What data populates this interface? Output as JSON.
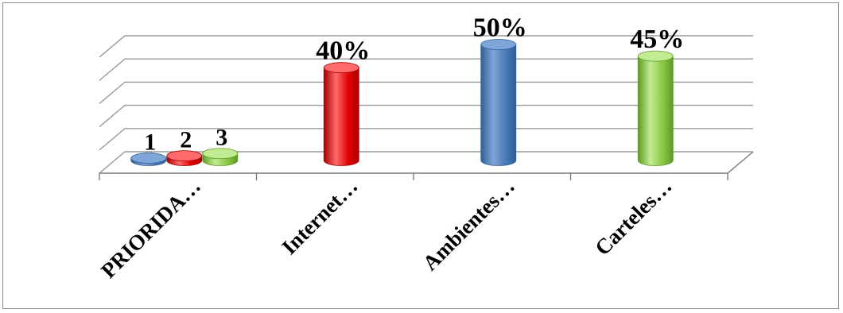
{
  "chart_data": {
    "type": "bar",
    "style": "3d-cylinder",
    "categories": [
      "PRIORIDA…",
      "Internet…",
      "Ambientes…",
      "Carteles…"
    ],
    "series": [
      {
        "values": [
          1,
          40,
          50,
          45
        ],
        "color": "#4f81bd"
      },
      {
        "values": [
          2,
          null,
          null,
          null
        ],
        "color": "#ff0000"
      },
      {
        "values": [
          3,
          null,
          null,
          null
        ],
        "color": "#92d050"
      }
    ],
    "bars": [
      {
        "category": 0,
        "value": 1,
        "label": "1",
        "color": "#4f81bd"
      },
      {
        "category": 0,
        "value": 2,
        "label": "2",
        "color": "#ff0000"
      },
      {
        "category": 0,
        "value": 3,
        "label": "3",
        "color": "#92d050"
      },
      {
        "category": 1,
        "value": 40,
        "label": "40%",
        "color": "#ff0000"
      },
      {
        "category": 2,
        "value": 50,
        "label": "50%",
        "color": "#4f81bd"
      },
      {
        "category": 3,
        "value": 45,
        "label": "45%",
        "color": "#92d050"
      }
    ],
    "ylim": [
      0,
      50
    ],
    "grid": true,
    "legend": "none"
  }
}
